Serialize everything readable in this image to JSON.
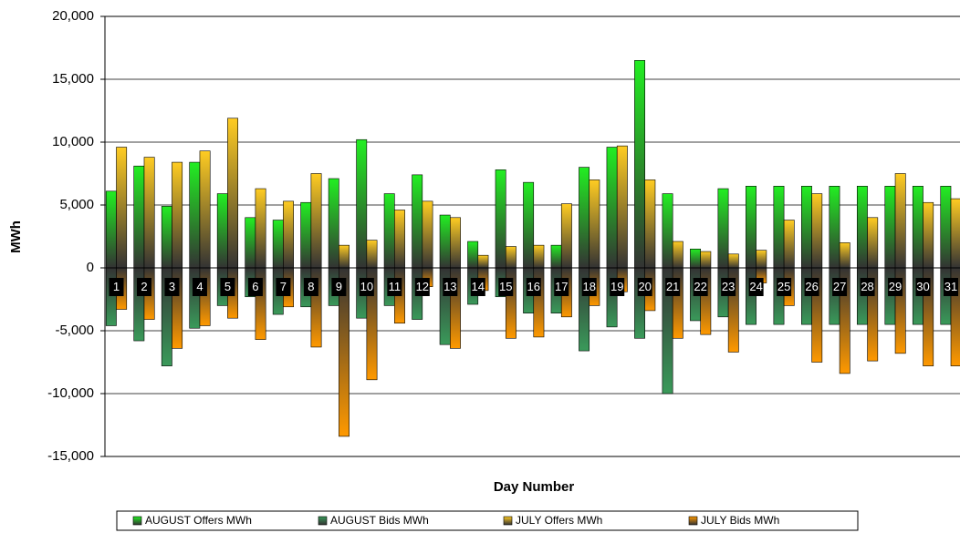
{
  "chart_data": {
    "type": "bar",
    "x_label": "Day Number",
    "y_label": "MWh",
    "categories": [
      "1",
      "2",
      "3",
      "4",
      "5",
      "6",
      "7",
      "8",
      "9",
      "10",
      "11",
      "12",
      "13",
      "14",
      "15",
      "16",
      "17",
      "18",
      "19",
      "20",
      "21",
      "22",
      "23",
      "24",
      "25",
      "26",
      "27",
      "28",
      "29",
      "30",
      "31"
    ],
    "series": [
      {
        "name": "AUGUST Offers MWh",
        "color": "#22ee22",
        "group": 0,
        "values": [
          6100,
          8100,
          4900,
          8400,
          5900,
          4000,
          3800,
          5200,
          7100,
          10200,
          5900,
          7400,
          4200,
          2100,
          7800,
          6800,
          1800,
          8000,
          9600,
          16500,
          5900,
          1500,
          6300,
          6500,
          6500,
          6500,
          6500,
          6500,
          6500,
          6500,
          6500
        ]
      },
      {
        "name": "AUGUST Bids MWh",
        "color": "#3a9a5a",
        "group": 0,
        "values": [
          -4600,
          -5800,
          -7800,
          -4800,
          -3000,
          -2300,
          -3700,
          -3100,
          -3000,
          -4000,
          -3000,
          -4100,
          -6100,
          -2900,
          -2300,
          -3600,
          -3600,
          -6600,
          -4700,
          -5600,
          -10000,
          -4200,
          -3900,
          -4500,
          -4500,
          -4500,
          -4500,
          -4500,
          -4500,
          -4500,
          -4500
        ]
      },
      {
        "name": "JULY Offers MWh",
        "color": "#ffcc22",
        "group": 1,
        "values": [
          9600,
          8800,
          8400,
          9300,
          11900,
          6300,
          5300,
          7500,
          1800,
          2200,
          4600,
          5300,
          4000,
          1000,
          1700,
          1800,
          5100,
          7000,
          9700,
          7000,
          2100,
          1300,
          1100,
          1400,
          3800,
          5900,
          2000,
          4000,
          7500,
          5200,
          5500
        ]
      },
      {
        "name": "JULY Bids MWh",
        "color": "#ff9900",
        "group": 1,
        "values": [
          -3300,
          -4100,
          -6400,
          -4600,
          -4000,
          -5700,
          -3100,
          -6300,
          -13400,
          -8900,
          -4400,
          -1500,
          -6400,
          -1800,
          -5600,
          -5500,
          -3900,
          -3000,
          -1900,
          -3400,
          -5600,
          -5300,
          -6700,
          -1200,
          -3000,
          -7500,
          -8400,
          -7400,
          -6800,
          -7800,
          -7800
        ]
      }
    ],
    "ylim": [
      -15000,
      20000
    ],
    "yticks": [
      {
        "value": -15000,
        "label": "-15,000"
      },
      {
        "value": -10000,
        "label": "-10,000"
      },
      {
        "value": -5000,
        "label": "-5,000"
      },
      0,
      {
        "value": 5000,
        "label": "5,000"
      },
      {
        "value": 10000,
        "label": "10,000"
      },
      {
        "value": 15000,
        "label": "15,000"
      },
      {
        "value": 20000,
        "label": "20,000"
      }
    ],
    "grid": true,
    "legend": "bottom"
  }
}
